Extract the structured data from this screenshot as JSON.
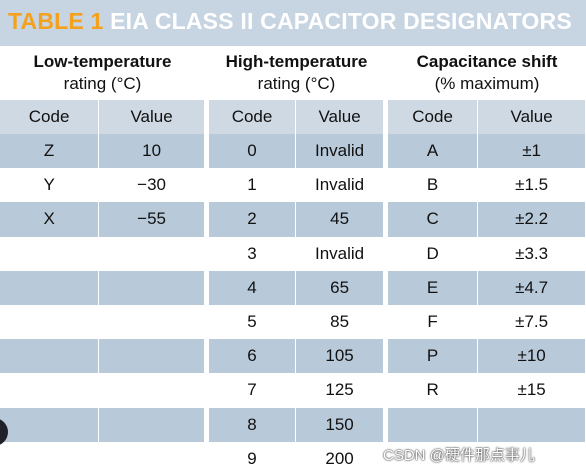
{
  "title": {
    "number": "TABLE 1",
    "text": "EIA CLASS II CAPACITOR DESIGNATORS"
  },
  "groups": [
    {
      "line1": "Low-temperature",
      "line2": "rating (°C)"
    },
    {
      "line1": "High-temperature",
      "line2": "rating (°C)"
    },
    {
      "line1": "Capacitance shift",
      "line2": "(% maximum)"
    }
  ],
  "subheaders": {
    "code": "Code",
    "value": "Value"
  },
  "rows": [
    {
      "low_code": "Z",
      "low_value": "10",
      "high_code": "0",
      "high_value": "Invalid",
      "cap_code": "A",
      "cap_value": "±1"
    },
    {
      "low_code": "Y",
      "low_value": "−30",
      "high_code": "1",
      "high_value": "Invalid",
      "cap_code": "B",
      "cap_value": "±1.5"
    },
    {
      "low_code": "X",
      "low_value": "−55",
      "high_code": "2",
      "high_value": "45",
      "cap_code": "C",
      "cap_value": "±2.2"
    },
    {
      "low_code": "",
      "low_value": "",
      "high_code": "3",
      "high_value": "Invalid",
      "cap_code": "D",
      "cap_value": "±3.3"
    },
    {
      "low_code": "",
      "low_value": "",
      "high_code": "4",
      "high_value": "65",
      "cap_code": "E",
      "cap_value": "±4.7"
    },
    {
      "low_code": "",
      "low_value": "",
      "high_code": "5",
      "high_value": "85",
      "cap_code": "F",
      "cap_value": "±7.5"
    },
    {
      "low_code": "",
      "low_value": "",
      "high_code": "6",
      "high_value": "105",
      "cap_code": "P",
      "cap_value": "±10"
    },
    {
      "low_code": "",
      "low_value": "",
      "high_code": "7",
      "high_value": "125",
      "cap_code": "R",
      "cap_value": "±15"
    },
    {
      "low_code": "",
      "low_value": "",
      "high_code": "8",
      "high_value": "150",
      "cap_code": "",
      "cap_value": ""
    },
    {
      "low_code": "",
      "low_value": "",
      "high_code": "9",
      "high_value": "200",
      "cap_code": "",
      "cap_value": ""
    }
  ],
  "watermark": "CSDN @硬件那点事儿",
  "colors": {
    "title_bar": "#c7d4e1",
    "title_number": "#f4a21d",
    "title_text": "#ffffff",
    "subheader": "#cfd9e3",
    "row_dark": "#b8c9da",
    "row_light": "#ffffff"
  }
}
